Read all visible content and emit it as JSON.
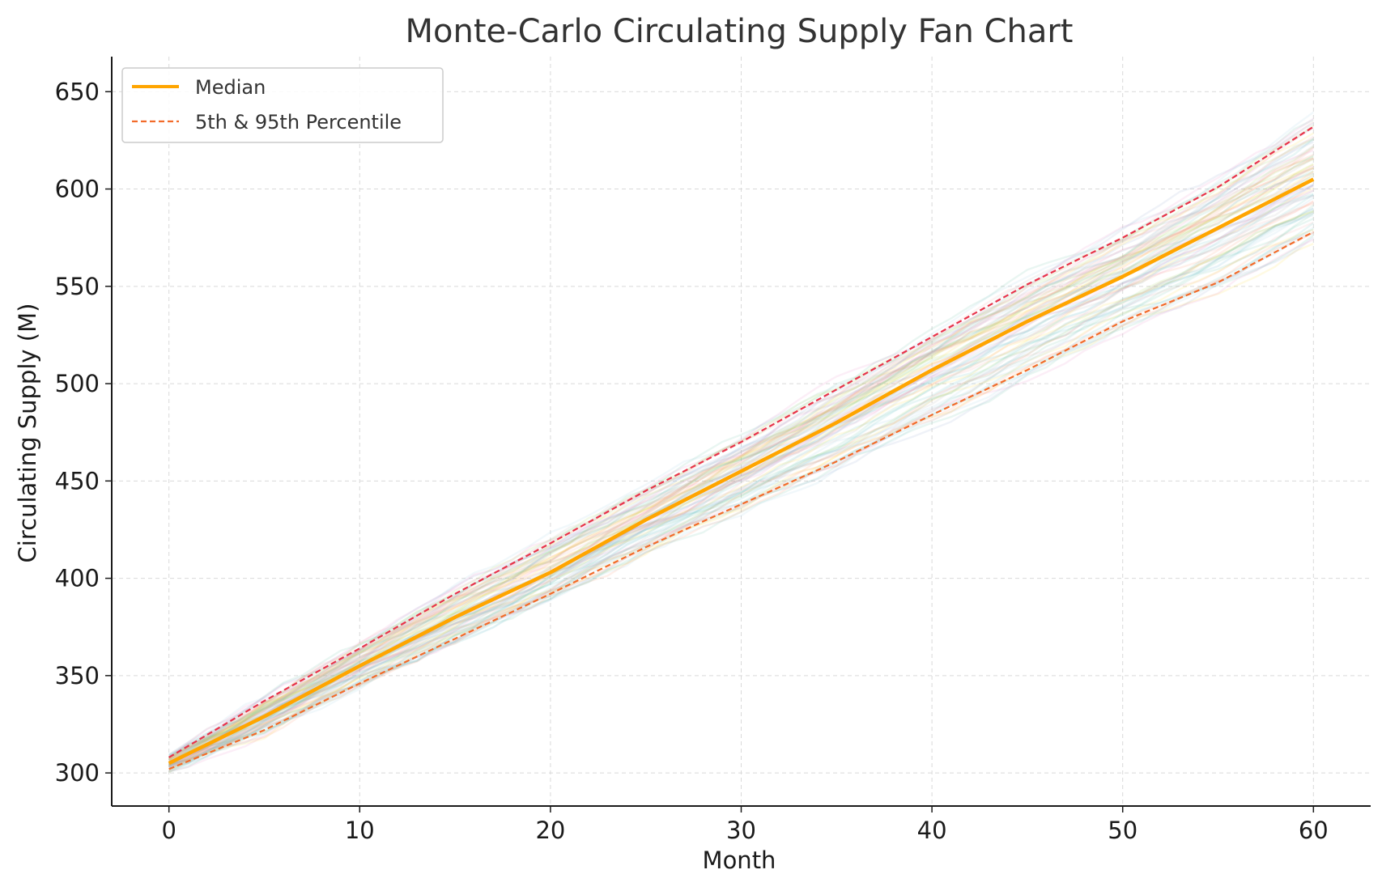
{
  "chart_data": {
    "type": "line",
    "title": "Monte-Carlo Circulating Supply Fan Chart",
    "xlabel": "Month",
    "ylabel": "Circulating Supply (M)",
    "xlim": [
      -3,
      63
    ],
    "ylim": [
      283,
      668
    ],
    "xticks": [
      0,
      10,
      20,
      30,
      40,
      50,
      60
    ],
    "yticks": [
      300,
      350,
      400,
      450,
      500,
      550,
      600,
      650
    ],
    "grid": true,
    "legend": {
      "placement": "top-left",
      "entries": [
        {
          "label": "Median",
          "series": "median"
        },
        {
          "label": "5th & 95th Percentile",
          "series": "p5"
        }
      ]
    },
    "series": [
      {
        "key": "median",
        "color": "#FFA500",
        "style": "solid",
        "x": [
          0,
          5,
          10,
          15,
          20,
          25,
          30,
          35,
          40,
          45,
          50,
          55,
          60
        ],
        "y": [
          305,
          329,
          355,
          380,
          403,
          430,
          455,
          480,
          507,
          532,
          555,
          580,
          605
        ]
      },
      {
        "key": "p95",
        "color": "#E8334A",
        "style": "dashed",
        "x": [
          0,
          5,
          10,
          15,
          20,
          25,
          30,
          35,
          40,
          45,
          50,
          55,
          60
        ],
        "y": [
          308,
          337,
          364,
          392,
          418,
          445,
          470,
          497,
          524,
          551,
          575,
          601,
          632
        ]
      },
      {
        "key": "p5",
        "color": "#F26B2A",
        "style": "dashed",
        "x": [
          0,
          5,
          10,
          15,
          20,
          25,
          30,
          35,
          40,
          45,
          50,
          55,
          60
        ],
        "y": [
          302,
          322,
          346,
          369,
          392,
          416,
          438,
          460,
          484,
          507,
          532,
          552,
          578
        ]
      }
    ],
    "simulation_paths": {
      "count": 80,
      "x_start": 0,
      "x_end": 60,
      "y_start_range": [
        302,
        308
      ],
      "y_end_range": [
        570,
        645
      ],
      "colors": [
        "#66c2a5",
        "#fc8d62",
        "#8da0cb",
        "#e78ac3",
        "#a6d854",
        "#ffd92f",
        "#b3b3b3",
        "#5fbfbf",
        "#f4a6a6",
        "#9ecae1"
      ],
      "opacity": 0.14
    }
  }
}
